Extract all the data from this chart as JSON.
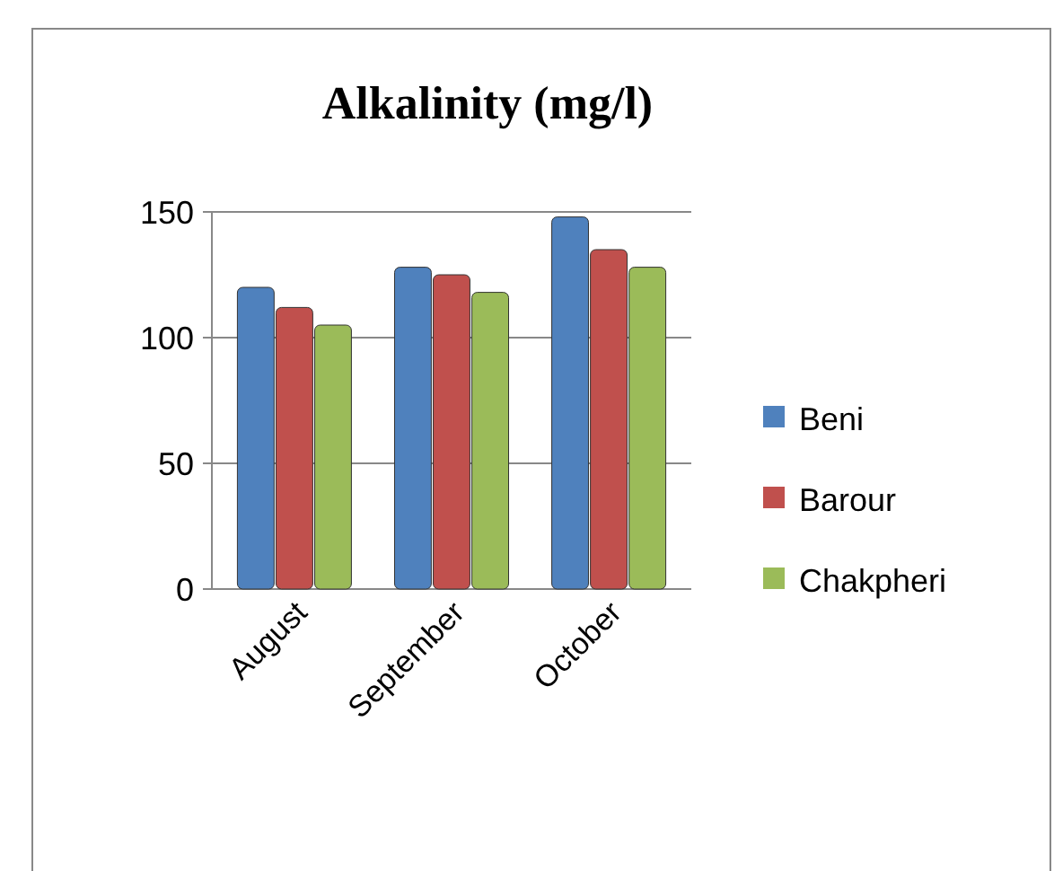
{
  "chart_data": {
    "type": "bar",
    "title": "Alkalinity (mg/l)",
    "categories": [
      "August",
      "September",
      "October"
    ],
    "series": [
      {
        "name": "Beni",
        "color": "#4f81bd",
        "values": [
          120,
          128,
          148
        ]
      },
      {
        "name": "Barour",
        "color": "#c0504d",
        "values": [
          112,
          125,
          135
        ]
      },
      {
        "name": "Chakpheri",
        "color": "#9bbb59",
        "values": [
          105,
          118,
          128
        ]
      }
    ],
    "ylim": [
      0,
      150
    ],
    "yticks": [
      0,
      50,
      100,
      150
    ],
    "grid": "y",
    "legend": "right"
  }
}
